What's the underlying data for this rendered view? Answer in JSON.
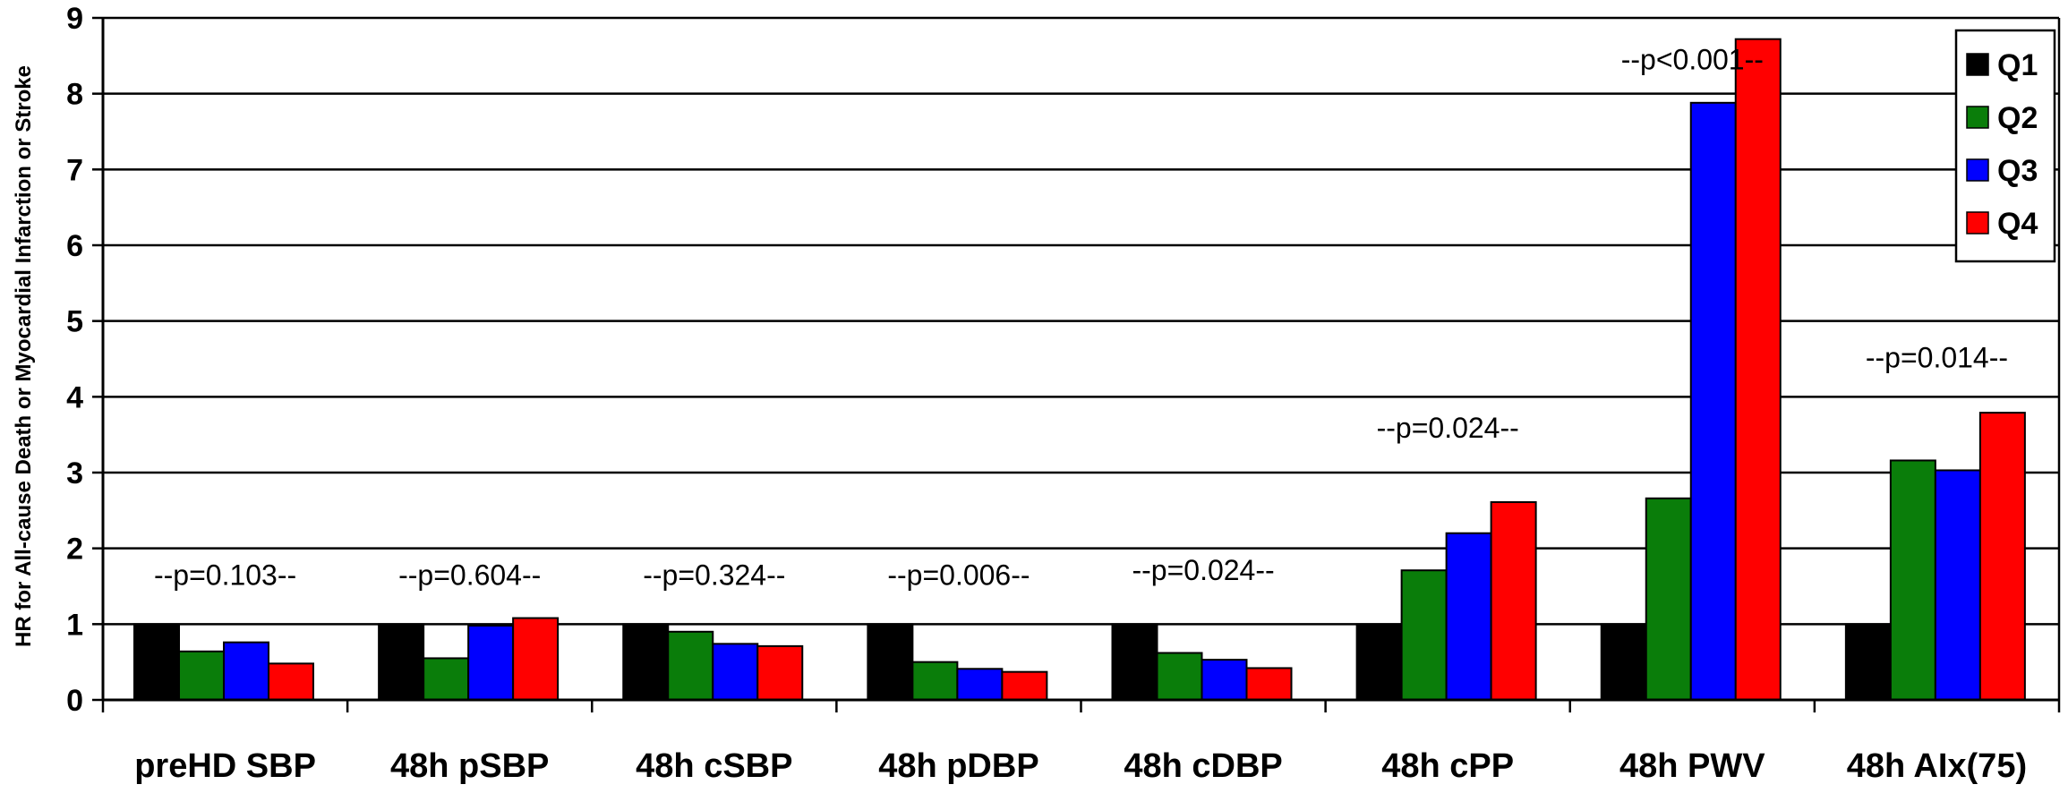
{
  "chart_data": {
    "type": "bar",
    "title": "",
    "xlabel": "",
    "ylabel": "HR for All-cause Death or Myocardial Infarction or Stroke",
    "ylim": [
      0,
      9
    ],
    "yticks": [
      0,
      1,
      2,
      3,
      4,
      5,
      6,
      7,
      8,
      9
    ],
    "grid": "horizontal",
    "legend_position": "top-right",
    "categories": [
      "preHD SBP",
      "48h pSBP",
      "48h cSBP",
      "48h pDBP",
      "48h cDBP",
      "48h cPP",
      "48h PWV",
      "48h AIx(75)"
    ],
    "series": [
      {
        "name": "Q1",
        "color": "#000000",
        "values": [
          1.0,
          1.0,
          1.0,
          1.0,
          1.0,
          1.0,
          1.0,
          1.0
        ]
      },
      {
        "name": "Q2",
        "color": "#0a7d0a",
        "values": [
          0.64,
          0.55,
          0.9,
          0.5,
          0.62,
          1.71,
          2.66,
          3.16
        ]
      },
      {
        "name": "Q3",
        "color": "#0000ff",
        "values": [
          0.76,
          0.98,
          0.74,
          0.41,
          0.53,
          2.2,
          7.88,
          3.03
        ]
      },
      {
        "name": "Q4",
        "color": "#ff0000",
        "values": [
          0.48,
          1.08,
          0.71,
          0.37,
          0.42,
          2.61,
          8.72,
          3.79
        ]
      }
    ],
    "annotations": [
      {
        "category": "preHD SBP",
        "text": "--p=0.103--",
        "y": 1.52
      },
      {
        "category": "48h pSBP",
        "text": "--p=0.604--",
        "y": 1.52
      },
      {
        "category": "48h cSBP",
        "text": "--p=0.324--",
        "y": 1.52
      },
      {
        "category": "48h pDBP",
        "text": "--p=0.006--",
        "y": 1.52
      },
      {
        "category": "48h cDBP",
        "text": "--p=0.024--",
        "y": 1.58
      },
      {
        "category": "48h cPP",
        "text": "--p=0.024--",
        "y": 3.46
      },
      {
        "category": "48h PWV",
        "text": "--p<0.001--",
        "y": 8.32
      },
      {
        "category": "48h AIx(75)",
        "text": "--p=0.014--",
        "y": 4.39
      }
    ]
  }
}
